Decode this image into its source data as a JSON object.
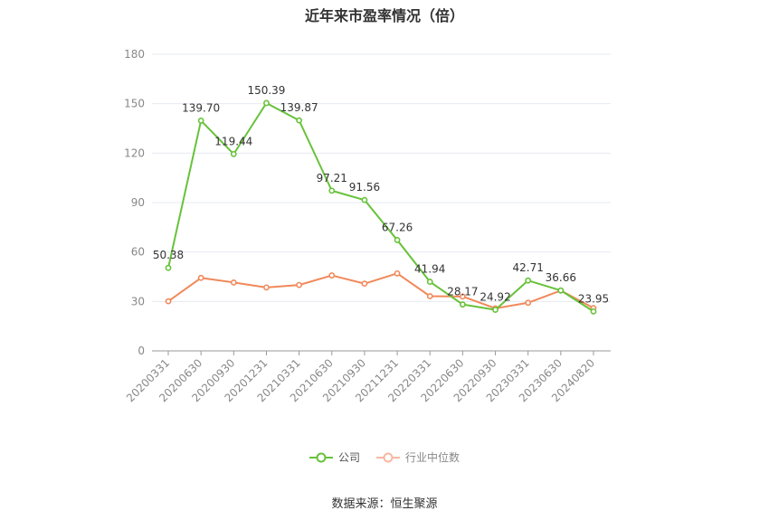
{
  "chart_data": {
    "type": "line",
    "title": "近年来市盈率情况（倍）",
    "categories": [
      "20200331",
      "20200630",
      "20200930",
      "20201231",
      "20210331",
      "20210630",
      "20210930",
      "20211231",
      "20220331",
      "20220630",
      "20220930",
      "20230331",
      "20230630",
      "20240820"
    ],
    "series": [
      {
        "name": "公司",
        "color": "#67c23a",
        "values": [
          50.38,
          139.7,
          119.44,
          150.39,
          139.87,
          97.21,
          91.56,
          67.26,
          41.94,
          28.17,
          24.92,
          42.71,
          36.66,
          23.95
        ],
        "labels": [
          "50.38",
          "139.70",
          "119.44",
          "150.39",
          "139.87",
          "97.21",
          "91.56",
          "67.26",
          "41.94",
          "28.17",
          "24.92",
          "42.71",
          "36.66",
          "23.95"
        ]
      },
      {
        "name": "行业中位数",
        "color": "#f0895a",
        "values": [
          30.1,
          44.3,
          41.5,
          38.5,
          40.0,
          45.8,
          40.8,
          47.0,
          33.2,
          33.0,
          25.8,
          29.2,
          36.6,
          26.0
        ]
      }
    ],
    "yticks": [
      "0",
      "30",
      "60",
      "90",
      "120",
      "150",
      "180"
    ],
    "ylim": [
      0,
      180
    ],
    "grid": true,
    "legend": "bottom-center",
    "source": "数据来源：恒生聚源"
  }
}
